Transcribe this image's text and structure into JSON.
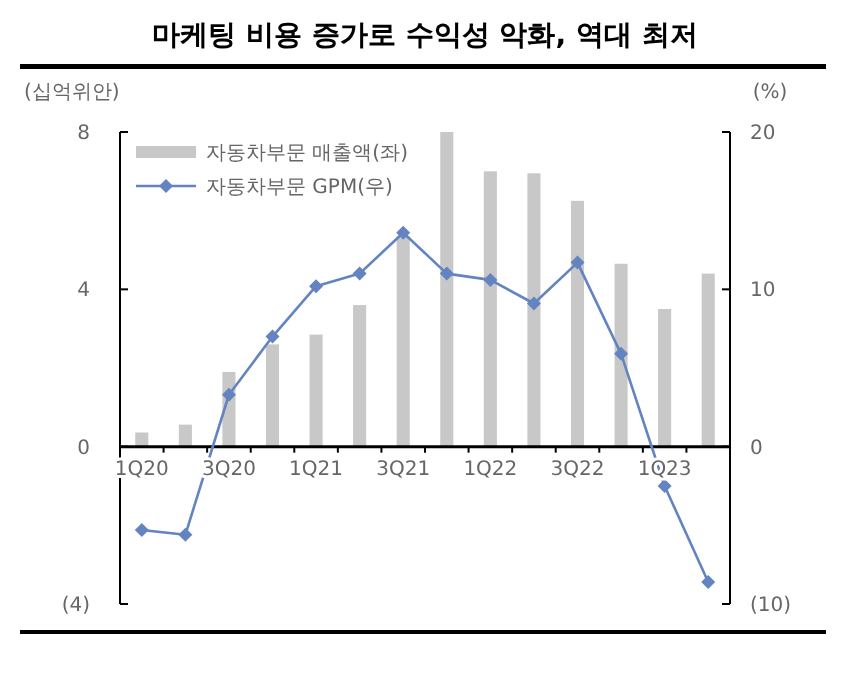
{
  "chart_data": {
    "type": "bar",
    "title": "마케팅 비용 증가로 수익성 악화, 역대 최저",
    "ylabel": "(십억위안)",
    "y2label": "(%)",
    "categories": [
      "1Q20",
      null,
      "3Q20",
      null,
      "1Q21",
      null,
      "3Q21",
      null,
      "1Q22",
      null,
      "3Q22",
      null,
      "1Q23",
      null
    ],
    "series": [
      {
        "name": "자동차부문  매출액(좌)",
        "color": "#c8c8c8",
        "values": [
          0.36,
          0.56,
          1.9,
          2.6,
          2.85,
          3.6,
          5.35,
          8.0,
          7.0,
          6.95,
          6.25,
          4.65,
          3.5,
          4.4
        ]
      },
      {
        "name": "자동차부문  GPM(우)",
        "type": "line",
        "axis": "y2",
        "color": "#6384c0",
        "marker": "diamond",
        "values": [
          -5.3,
          -5.6,
          3.3,
          7.0,
          10.2,
          11.0,
          13.6,
          11.0,
          10.6,
          9.1,
          11.7,
          5.9,
          -2.5,
          -8.6
        ]
      }
    ],
    "ylim": [
      -4,
      8
    ],
    "yticks": [
      {
        "value": -4,
        "label": "(4)"
      },
      0,
      4,
      8
    ],
    "y2lim": [
      -10,
      20
    ],
    "y2ticks": [
      {
        "value": -10,
        "label": "(10)"
      },
      0,
      10,
      20
    ],
    "legend": "top left",
    "grid": false
  }
}
